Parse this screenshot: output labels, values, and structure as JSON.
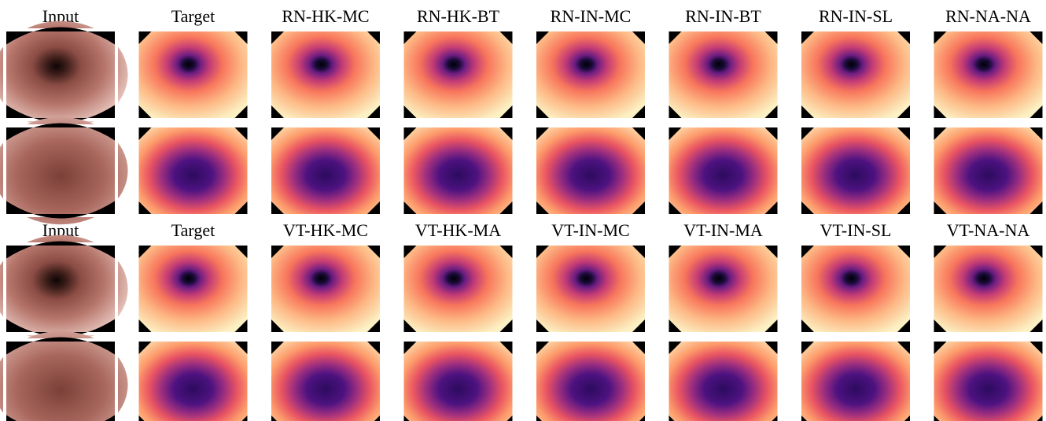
{
  "groups": [
    {
      "labels": [
        "Input",
        "Target",
        "RN-HK-MC",
        "RN-HK-BT",
        "RN-IN-MC",
        "RN-IN-BT",
        "RN-IN-SL",
        "RN-NA-NA"
      ]
    },
    {
      "labels": [
        "Input",
        "Target",
        "VT-HK-MC",
        "VT-HK-MA",
        "VT-IN-MC",
        "VT-IN-MA",
        "VT-IN-SL",
        "VT-NA-NA"
      ]
    }
  ]
}
